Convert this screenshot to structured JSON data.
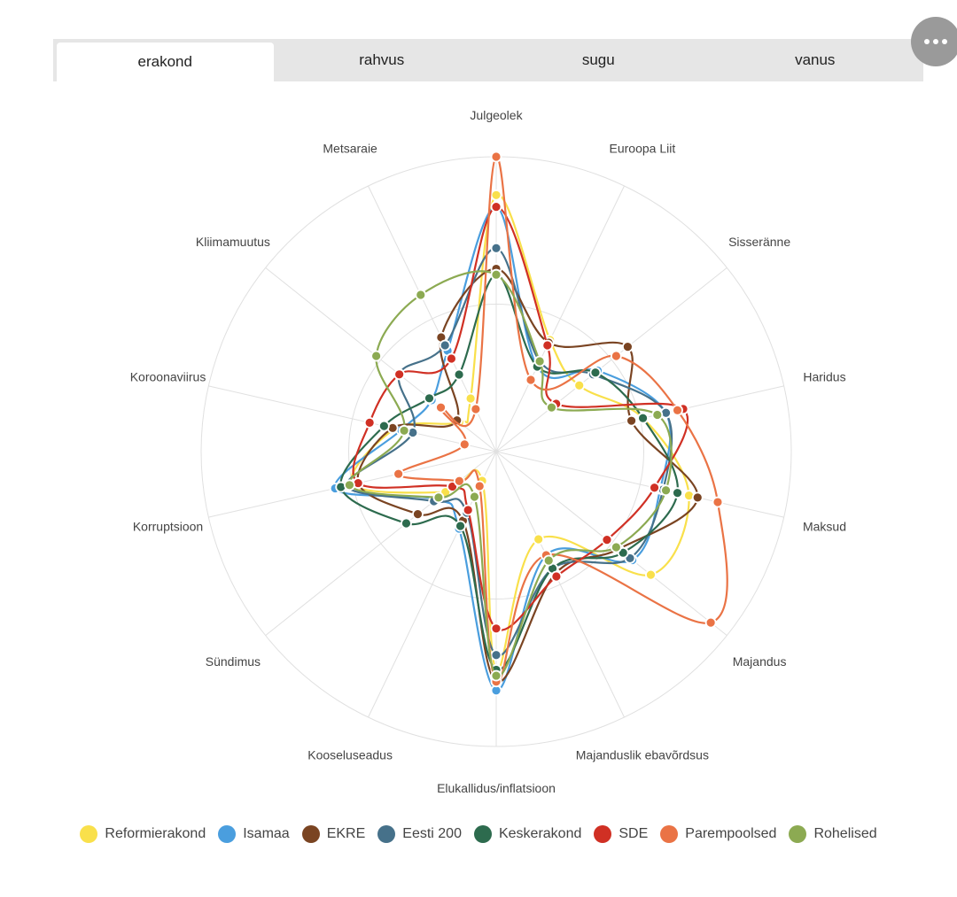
{
  "tabs": [
    {
      "label": "erakond",
      "active": true
    },
    {
      "label": "rahvus",
      "active": false
    },
    {
      "label": "sugu",
      "active": false
    },
    {
      "label": "vanus",
      "active": false
    }
  ],
  "menu_icon": "more-horizontal-icon",
  "chart_data": {
    "type": "radar",
    "axes": [
      "Julgeolek",
      "Euroopa Liit",
      "Sisseränne",
      "Haridus",
      "Maksud",
      "Majandus",
      "Majanduslik ebavõrdsus",
      "Elukallidus/inflatsioon",
      "Kooseluseadus",
      "Sündimus",
      "Korruptsioon",
      "Koroonaviirus",
      "Kliimamuutus",
      "Metsaraie"
    ],
    "rmax": 1.0,
    "grid_rings": [
      0.5,
      1.0
    ],
    "series": [
      {
        "name": "Reformierakond",
        "color": "#f9e04b",
        "values": [
          0.87,
          0.42,
          0.36,
          0.51,
          0.67,
          0.67,
          0.33,
          0.74,
          0.11,
          0.22,
          0.5,
          0.35,
          0.16,
          0.2
        ]
      },
      {
        "name": "Isamaa",
        "color": "#4a9ede",
        "values": [
          0.83,
          0.32,
          0.44,
          0.59,
          0.57,
          0.59,
          0.39,
          0.81,
          0.29,
          0.26,
          0.56,
          0.33,
          0.28,
          0.38
        ]
      },
      {
        "name": "EKRE",
        "color": "#7a4422",
        "values": [
          0.62,
          0.41,
          0.57,
          0.47,
          0.7,
          0.53,
          0.46,
          0.78,
          0.26,
          0.34,
          0.48,
          0.36,
          0.17,
          0.43
        ]
      },
      {
        "name": "Eesti 200",
        "color": "#46718a",
        "values": [
          0.69,
          0.34,
          0.42,
          0.59,
          0.58,
          0.58,
          0.44,
          0.69,
          0.23,
          0.27,
          0.52,
          0.29,
          0.42,
          0.4
        ]
      },
      {
        "name": "Keskerakond",
        "color": "#2d6b4e",
        "values": [
          0.6,
          0.32,
          0.43,
          0.51,
          0.63,
          0.55,
          0.44,
          0.74,
          0.28,
          0.39,
          0.54,
          0.39,
          0.29,
          0.29
        ]
      },
      {
        "name": "SDE",
        "color": "#d03024",
        "values": [
          0.83,
          0.4,
          0.26,
          0.65,
          0.55,
          0.48,
          0.47,
          0.6,
          0.22,
          0.19,
          0.48,
          0.44,
          0.42,
          0.35
        ]
      },
      {
        "name": "Parempoolsed",
        "color": "#ea7345",
        "values": [
          1.0,
          0.27,
          0.52,
          0.63,
          0.77,
          0.93,
          0.39,
          0.78,
          0.13,
          0.16,
          0.34,
          0.11,
          0.24,
          0.16
        ]
      },
      {
        "name": "Rohelised",
        "color": "#8caa52",
        "values": [
          0.6,
          0.34,
          0.24,
          0.56,
          0.59,
          0.52,
          0.41,
          0.76,
          0.17,
          0.25,
          0.51,
          0.32,
          0.52,
          0.59
        ]
      }
    ]
  }
}
